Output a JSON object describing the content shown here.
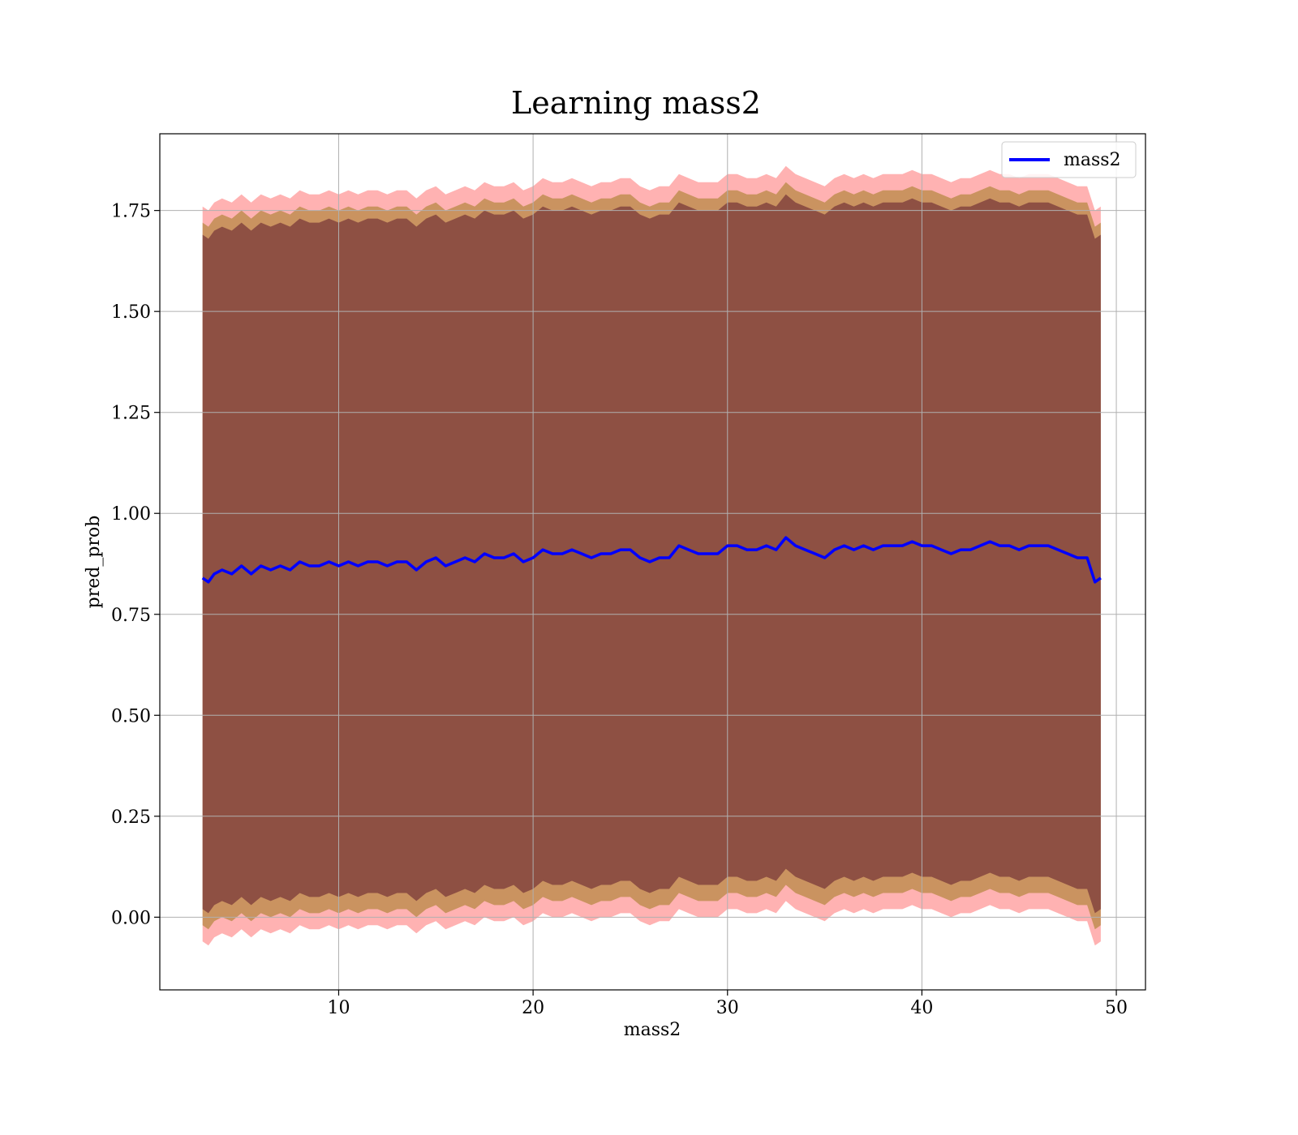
{
  "chart_data": {
    "type": "line",
    "title": "Learning mass2",
    "xlabel": "mass2",
    "ylabel": "pred_prob",
    "xlim": [
      0.8,
      51.5
    ],
    "ylim": [
      -0.18,
      1.94
    ],
    "xticks": [
      10,
      20,
      30,
      40,
      50
    ],
    "yticks": [
      0.0,
      0.25,
      0.5,
      0.75,
      1.0,
      1.25,
      1.5,
      1.75
    ],
    "ytick_labels": [
      "0.00",
      "0.25",
      "0.50",
      "0.75",
      "1.00",
      "1.25",
      "1.50",
      "1.75"
    ],
    "grid": true,
    "legend_position": "top-right",
    "series": [
      {
        "name": "mass2",
        "color": "#0000ff",
        "x": [
          3.0,
          3.3,
          3.6,
          4.0,
          4.5,
          5.0,
          5.5,
          6.0,
          6.5,
          7.0,
          7.5,
          8.0,
          8.5,
          9.0,
          9.5,
          10.0,
          10.5,
          11.0,
          11.5,
          12.0,
          12.5,
          13.0,
          13.5,
          14.0,
          14.5,
          15.0,
          15.5,
          16.0,
          16.5,
          17.0,
          17.5,
          18.0,
          18.5,
          19.0,
          19.5,
          20.0,
          20.5,
          21.0,
          21.5,
          22.0,
          22.5,
          23.0,
          23.5,
          24.0,
          24.5,
          25.0,
          25.5,
          26.0,
          26.5,
          27.0,
          27.5,
          28.0,
          28.5,
          29.0,
          29.5,
          30.0,
          30.5,
          31.0,
          31.5,
          32.0,
          32.5,
          33.0,
          33.5,
          34.0,
          34.5,
          35.0,
          35.5,
          36.0,
          36.5,
          37.0,
          37.5,
          38.0,
          38.5,
          39.0,
          39.5,
          40.0,
          40.5,
          41.0,
          41.5,
          42.0,
          42.5,
          43.0,
          43.5,
          44.0,
          44.5,
          45.0,
          45.5,
          46.0,
          46.5,
          47.0,
          47.5,
          48.0,
          48.5,
          48.9,
          49.2
        ],
        "values": [
          0.84,
          0.83,
          0.85,
          0.86,
          0.85,
          0.87,
          0.85,
          0.87,
          0.86,
          0.87,
          0.86,
          0.88,
          0.87,
          0.87,
          0.88,
          0.87,
          0.88,
          0.87,
          0.88,
          0.88,
          0.87,
          0.88,
          0.88,
          0.86,
          0.88,
          0.89,
          0.87,
          0.88,
          0.89,
          0.88,
          0.9,
          0.89,
          0.89,
          0.9,
          0.88,
          0.89,
          0.91,
          0.9,
          0.9,
          0.91,
          0.9,
          0.89,
          0.9,
          0.9,
          0.91,
          0.91,
          0.89,
          0.88,
          0.89,
          0.89,
          0.92,
          0.91,
          0.9,
          0.9,
          0.9,
          0.92,
          0.92,
          0.91,
          0.91,
          0.92,
          0.91,
          0.94,
          0.92,
          0.91,
          0.9,
          0.89,
          0.91,
          0.92,
          0.91,
          0.92,
          0.91,
          0.92,
          0.92,
          0.92,
          0.93,
          0.92,
          0.92,
          0.91,
          0.9,
          0.91,
          0.91,
          0.92,
          0.93,
          0.92,
          0.92,
          0.91,
          0.92,
          0.92,
          0.92,
          0.91,
          0.9,
          0.89,
          0.89,
          0.83,
          0.84
        ]
      }
    ],
    "bands": [
      {
        "color": "#ff0000",
        "opacity": 0.3,
        "upper_offset": 0.92,
        "lower_offset": -0.9
      },
      {
        "color": "#9e7a1e",
        "opacity": 0.55,
        "upper_offset": 0.88,
        "lower_offset": -0.86
      },
      {
        "color": "#5c1a2b",
        "opacity": 0.55,
        "upper_offset": 0.85,
        "lower_offset": -0.82
      }
    ]
  }
}
